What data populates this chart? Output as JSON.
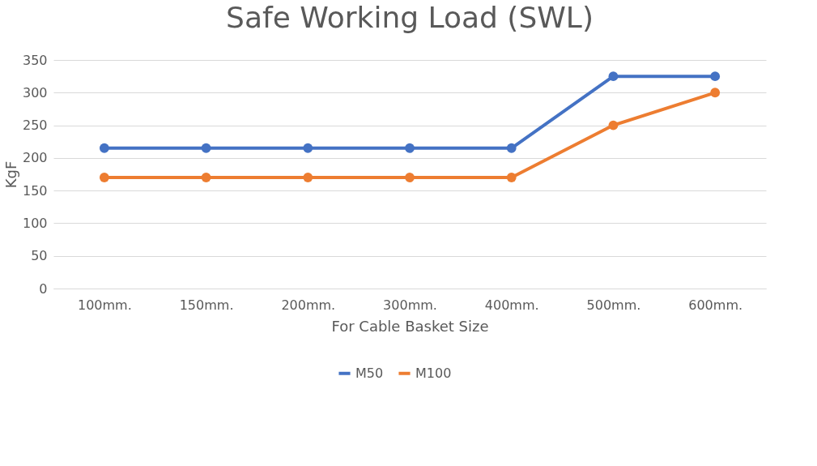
{
  "chart_data": {
    "type": "line",
    "title": "Safe Working Load (SWL)",
    "xlabel": "For Cable Basket Size",
    "ylabel": "KgF",
    "categories": [
      "100mm.",
      "150mm.",
      "200mm.",
      "300mm.",
      "400mm.",
      "500mm.",
      "600mm."
    ],
    "series": [
      {
        "name": "M50",
        "color": "#4472c4",
        "values": [
          215,
          215,
          215,
          215,
          215,
          325,
          325
        ]
      },
      {
        "name": "M100",
        "color": "#ed7d31",
        "values": [
          170,
          170,
          170,
          170,
          170,
          250,
          300
        ]
      }
    ],
    "ylim": [
      0,
      350
    ],
    "yticks": [
      0,
      50,
      100,
      150,
      200,
      250,
      300,
      350
    ],
    "grid": "y",
    "legend": "bottom",
    "marker": "circle",
    "line_style": "solid"
  }
}
